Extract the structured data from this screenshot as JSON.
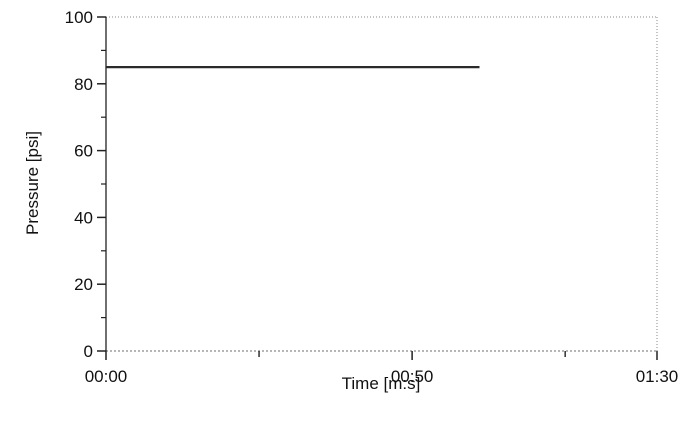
{
  "chart_data": {
    "type": "line",
    "title": "",
    "xlabel": "Time [m:s]",
    "ylabel": "Pressure [psi]",
    "xlim": [
      "00:00",
      "01:30"
    ],
    "ylim": [
      0,
      100
    ],
    "grid": false,
    "x_tick_labels": [
      {
        "x_seconds": 0,
        "label": "00:00"
      },
      {
        "x_seconds": 50,
        "label": "00:50"
      },
      {
        "x_seconds": 90,
        "label": "01:30"
      }
    ],
    "x_minor_ticks_seconds": [
      25,
      75
    ],
    "y_ticks": [
      0,
      20,
      40,
      60,
      80,
      100
    ],
    "y_minor_ticks": [
      10,
      30,
      50,
      70,
      90
    ],
    "series": [
      {
        "color": "#2a2a2a",
        "x": [
          "00:00",
          "01:01"
        ],
        "y": [
          85,
          85
        ]
      }
    ],
    "colors": {
      "axis": "#222222",
      "frame": "#8a8a8a",
      "series": "#2a2a2a"
    }
  }
}
